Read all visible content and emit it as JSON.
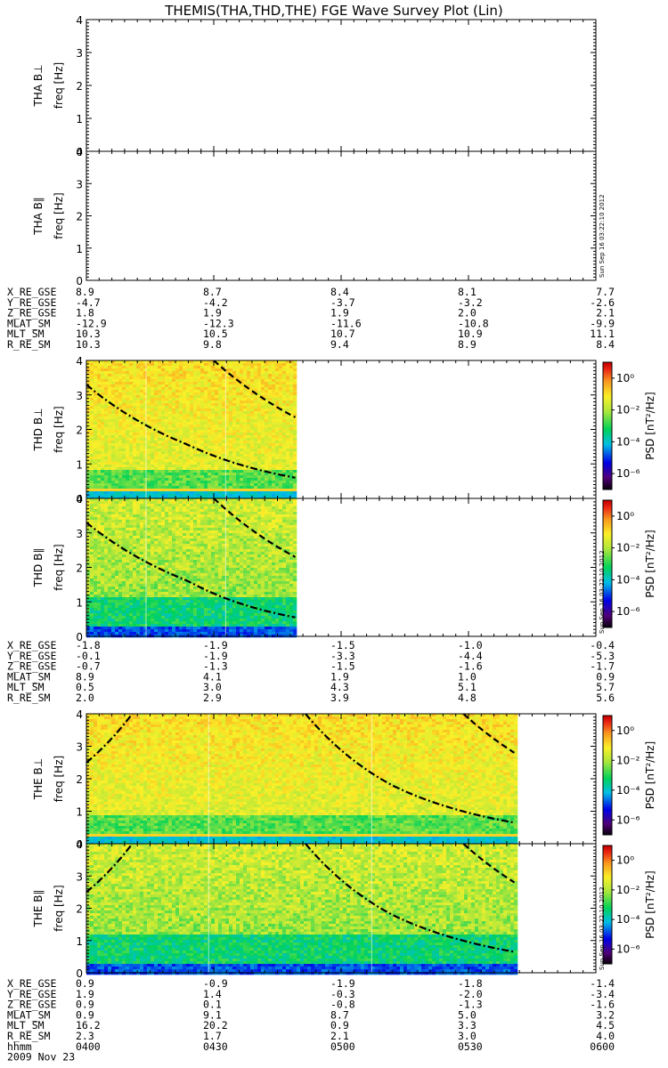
{
  "title": "THEMIS(THA,THD,THE) FGE Wave Survey Plot (Lin)",
  "stamp": "Sun Sep 16 03:22:10 2012",
  "colorbar": {
    "label": "PSD [nT²/Hz]",
    "ticks": [
      "10⁰",
      "10⁻²",
      "10⁻⁴",
      "10⁻⁶"
    ]
  },
  "time_axis": {
    "row_label": "hhmm",
    "ticks": [
      "0400",
      "0430",
      "0500",
      "0530",
      "0600"
    ],
    "date": "2009 Nov 23"
  },
  "groups": [
    {
      "probe": "THA",
      "panels": [
        "THA B⊥",
        "THA B∥"
      ],
      "has_data": false,
      "ephemeris": [
        {
          "label": "X_RE_GSE",
          "values": [
            "8.9",
            "8.7",
            "8.4",
            "8.1",
            "7.7"
          ]
        },
        {
          "label": "Y_RE_GSE",
          "values": [
            "-4.7",
            "-4.2",
            "-3.7",
            "-3.2",
            "-2.6"
          ]
        },
        {
          "label": "Z_RE_GSE",
          "values": [
            "1.8",
            "1.9",
            "1.9",
            "2.0",
            "2.1"
          ]
        },
        {
          "label": "MLAT_SM",
          "values": [
            "-12.9",
            "-12.3",
            "-11.6",
            "-10.8",
            "-9.9"
          ]
        },
        {
          "label": "MLT_SM",
          "values": [
            "10.3",
            "10.5",
            "10.7",
            "10.9",
            "11.1"
          ]
        },
        {
          "label": "R_RE_SM",
          "values": [
            "10.3",
            "9.8",
            "9.4",
            "8.9",
            "8.4"
          ]
        }
      ]
    },
    {
      "probe": "THD",
      "panels": [
        "THD B⊥",
        "THD B∥"
      ],
      "has_data": true,
      "ephemeris": [
        {
          "label": "X_RE_GSE",
          "values": [
            "-1.8",
            "-1.9",
            "-1.5",
            "-1.0",
            "-0.4"
          ]
        },
        {
          "label": "Y_RE_GSE",
          "values": [
            "-0.1",
            "-1.9",
            "-3.3",
            "-4.4",
            "-5.3"
          ]
        },
        {
          "label": "Z_RE_GSE",
          "values": [
            "-0.7",
            "-1.3",
            "-1.5",
            "-1.6",
            "-1.7"
          ]
        },
        {
          "label": "MLAT_SM",
          "values": [
            "8.9",
            "4.1",
            "1.9",
            "1.0",
            "0.9"
          ]
        },
        {
          "label": "MLT_SM",
          "values": [
            "0.5",
            "3.0",
            "4.3",
            "5.1",
            "5.7"
          ]
        },
        {
          "label": "R_RE_SM",
          "values": [
            "2.0",
            "2.9",
            "3.9",
            "4.8",
            "5.6"
          ]
        }
      ]
    },
    {
      "probe": "THE",
      "panels": [
        "THE B⊥",
        "THE B∥"
      ],
      "has_data": true,
      "ephemeris": [
        {
          "label": "X_RE_GSE",
          "values": [
            "0.9",
            "-0.9",
            "-1.9",
            "-1.8",
            "-1.4"
          ]
        },
        {
          "label": "Y_RE_GSE",
          "values": [
            "1.9",
            "1.4",
            "-0.3",
            "-2.0",
            "-3.4"
          ]
        },
        {
          "label": "Z_RE_GSE",
          "values": [
            "0.9",
            "0.1",
            "-0.8",
            "-1.3",
            "-1.6"
          ]
        },
        {
          "label": "MLAT_SM",
          "values": [
            "0.9",
            "9.1",
            "8.7",
            "5.0",
            "3.2"
          ]
        },
        {
          "label": "MLT_SM",
          "values": [
            "16.2",
            "20.2",
            "0.9",
            "3.3",
            "4.5"
          ]
        },
        {
          "label": "R_RE_SM",
          "values": [
            "2.3",
            "1.7",
            "2.1",
            "3.0",
            "4.0"
          ]
        }
      ]
    }
  ],
  "chart_data": {
    "type": "heatmap",
    "title": "THEMIS(THA,THD,THE) FGE Wave Survey Plot (Lin)",
    "ylabel": "freq [Hz]",
    "ylim": [
      0,
      4
    ],
    "y_ticks": [
      0,
      1,
      2,
      3,
      4
    ],
    "x_ticks": [
      "0400",
      "0430",
      "0500",
      "0530",
      "0600"
    ],
    "colorbar_label": "PSD [nT²/Hz]",
    "colorbar_range_log10": [
      -7,
      1
    ],
    "panels": [
      {
        "name": "THA B⊥",
        "data_extent_frac": 0
      },
      {
        "name": "THA B∥",
        "data_extent_frac": 0
      },
      {
        "name": "THD B⊥",
        "data_extent_frac": 0.41,
        "curves": [
          {
            "style": "dash-dot",
            "x": [
              0.0,
              0.2,
              0.41
            ],
            "y": [
              3.3,
              1.55,
              0.6
            ]
          },
          {
            "style": "dashed",
            "x": [
              0.25,
              0.41
            ],
            "y": [
              4.0,
              2.35
            ]
          }
        ]
      },
      {
        "name": "THD B∥",
        "data_extent_frac": 0.41,
        "curves": [
          {
            "style": "dash-dot",
            "x": [
              0.0,
              0.2,
              0.41
            ],
            "y": [
              3.3,
              1.6,
              0.55
            ]
          },
          {
            "style": "dashed",
            "x": [
              0.25,
              0.41
            ],
            "y": [
              4.0,
              2.3
            ]
          }
        ]
      },
      {
        "name": "THE B⊥",
        "data_extent_frac": 0.84,
        "curves": [
          {
            "style": "dash-dot",
            "x": [
              0.0,
              0.09
            ],
            "y": [
              2.5,
              4.0
            ]
          },
          {
            "style": "dash-dot",
            "x": [
              0.43,
              0.6,
              0.84
            ],
            "y": [
              4.0,
              1.8,
              0.65
            ]
          },
          {
            "style": "dashed",
            "x": [
              0.74,
              0.84
            ],
            "y": [
              4.0,
              2.8
            ]
          }
        ]
      },
      {
        "name": "THE B∥",
        "data_extent_frac": 0.84,
        "curves": [
          {
            "style": "dash-dot",
            "x": [
              0.0,
              0.09
            ],
            "y": [
              2.5,
              4.0
            ]
          },
          {
            "style": "dash-dot",
            "x": [
              0.43,
              0.6,
              0.84
            ],
            "y": [
              4.0,
              1.8,
              0.65
            ]
          },
          {
            "style": "dashed",
            "x": [
              0.74,
              0.84
            ],
            "y": [
              4.0,
              2.8
            ]
          }
        ]
      }
    ]
  }
}
